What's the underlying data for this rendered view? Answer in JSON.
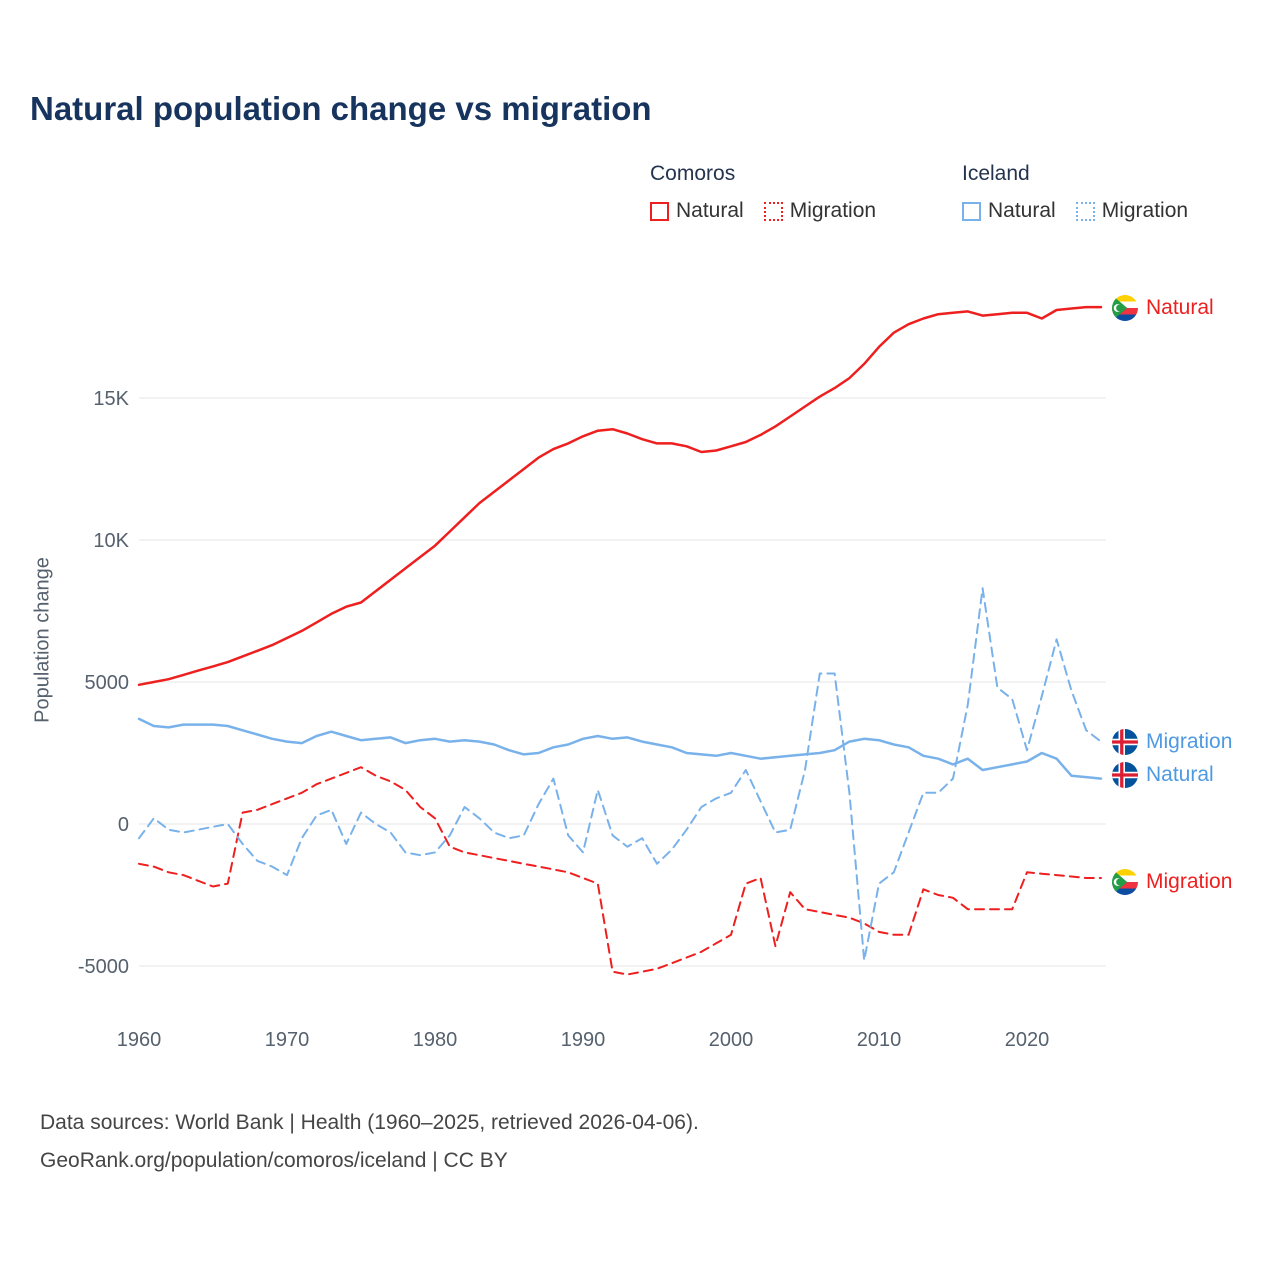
{
  "page": {
    "title": "Natural population change vs migration"
  },
  "colors": {
    "comoros": "#ee1f1f",
    "iceland_line": "#79b2ea",
    "iceland_text": "#4e9ae2",
    "title": "#17345e",
    "grid": "#e6e6e6",
    "axis_text": "#56616e"
  },
  "legend": {
    "groups": [
      {
        "country": "Comoros",
        "items": [
          {
            "label": "Natural",
            "style": "solid",
            "color": "#ee1f1f"
          },
          {
            "label": "Migration",
            "style": "dotted",
            "color": "#ee1f1f"
          }
        ]
      },
      {
        "country": "Iceland",
        "items": [
          {
            "label": "Natural",
            "style": "solid",
            "color": "#79b2ea"
          },
          {
            "label": "Migration",
            "style": "dotted",
            "color": "#79b2ea"
          }
        ]
      }
    ]
  },
  "series_labels": [
    {
      "label": "Natural",
      "country": "Comoros",
      "color": "#ee1f1f"
    },
    {
      "label": "Migration",
      "country": "Iceland",
      "color": "#4e9ae2"
    },
    {
      "label": "Natural",
      "country": "Iceland",
      "color": "#4e9ae2"
    },
    {
      "label": "Migration",
      "country": "Comoros",
      "color": "#ee1f1f"
    }
  ],
  "footer": {
    "line1": "Data sources: World Bank | Health (1960–2025, retrieved 2026-04-06).",
    "line2": "GeoRank.org/population/comoros/iceland | CC BY"
  },
  "chart_data": {
    "type": "line",
    "title": "Natural population change vs migration",
    "xlabel": "",
    "ylabel": "Population change",
    "grid": true,
    "legend_position": "top-right",
    "ylim": [
      -6500,
      19000
    ],
    "xlim": [
      1960,
      2025
    ],
    "yticks": [
      {
        "value": 15000,
        "label": "15K"
      },
      {
        "value": 10000,
        "label": "10K"
      },
      {
        "value": 5000,
        "label": "5000"
      },
      {
        "value": 0,
        "label": "0"
      },
      {
        "value": -5000,
        "label": "-5000"
      }
    ],
    "xticks": [
      1960,
      1970,
      1980,
      1990,
      2000,
      2010,
      2020
    ],
    "x": [
      1960,
      1961,
      1962,
      1963,
      1964,
      1965,
      1966,
      1967,
      1968,
      1969,
      1970,
      1971,
      1972,
      1973,
      1974,
      1975,
      1976,
      1977,
      1978,
      1979,
      1980,
      1981,
      1982,
      1983,
      1984,
      1985,
      1986,
      1987,
      1988,
      1989,
      1990,
      1991,
      1992,
      1993,
      1994,
      1995,
      1996,
      1997,
      1998,
      1999,
      2000,
      2001,
      2002,
      2003,
      2004,
      2005,
      2006,
      2007,
      2008,
      2009,
      2010,
      2011,
      2012,
      2013,
      2014,
      2015,
      2016,
      2017,
      2018,
      2019,
      2020,
      2021,
      2022,
      2023,
      2024,
      2025
    ],
    "series": [
      {
        "name": "Comoros Natural",
        "country": "Comoros",
        "color": "#ee1f1f",
        "dash": "solid",
        "values": [
          4900,
          5000,
          5100,
          5250,
          5400,
          5550,
          5700,
          5900,
          6100,
          6300,
          6550,
          6800,
          7100,
          7400,
          7650,
          7800,
          8200,
          8600,
          9000,
          9400,
          9800,
          10300,
          10800,
          11300,
          11700,
          12100,
          12500,
          12900,
          13200,
          13400,
          13650,
          13850,
          13900,
          13750,
          13550,
          13400,
          13400,
          13300,
          13100,
          13150,
          13300,
          13450,
          13700,
          14000,
          14350,
          14700,
          15050,
          15350,
          15700,
          16200,
          16800,
          17300,
          17600,
          17800,
          17950,
          18000,
          18050,
          17900,
          17950,
          18000,
          18000,
          17800,
          18100,
          18150,
          18200,
          18200
        ]
      },
      {
        "name": "Comoros Migration",
        "country": "Comoros",
        "color": "#ee1f1f",
        "dash": "dashed",
        "values": [
          -1400,
          -1500,
          -1700,
          -1800,
          -2000,
          -2200,
          -2100,
          400,
          500,
          700,
          900,
          1100,
          1400,
          1600,
          1800,
          2000,
          1700,
          1500,
          1200,
          600,
          200,
          -800,
          -1000,
          -1100,
          -1200,
          -1300,
          -1400,
          -1500,
          -1600,
          -1700,
          -1900,
          -2100,
          -5200,
          -5300,
          -5200,
          -5100,
          -4900,
          -4700,
          -4500,
          -4200,
          -3900,
          -2100,
          -1900,
          -4300,
          -2400,
          -3000,
          -3100,
          -3200,
          -3300,
          -3500,
          -3800,
          -3900,
          -3900,
          -2300,
          -2500,
          -2600,
          -3000,
          -3000,
          -3000,
          -3000,
          -1700,
          -1750,
          -1800,
          -1850,
          -1900,
          -1900
        ]
      },
      {
        "name": "Iceland Natural",
        "country": "Iceland",
        "color": "#79b2ea",
        "dash": "solid",
        "values": [
          3700,
          3450,
          3400,
          3500,
          3500,
          3500,
          3450,
          3300,
          3150,
          3000,
          2900,
          2850,
          3100,
          3250,
          3100,
          2950,
          3000,
          3050,
          2850,
          2950,
          3000,
          2900,
          2950,
          2900,
          2800,
          2600,
          2450,
          2500,
          2700,
          2800,
          3000,
          3100,
          3000,
          3050,
          2900,
          2800,
          2700,
          2500,
          2450,
          2400,
          2500,
          2400,
          2300,
          2350,
          2400,
          2450,
          2500,
          2600,
          2900,
          3000,
          2950,
          2800,
          2700,
          2400,
          2300,
          2100,
          2300,
          1900,
          2000,
          2100,
          2200,
          2500,
          2300,
          1700,
          1650,
          1600
        ]
      },
      {
        "name": "Iceland Migration",
        "country": "Iceland",
        "color": "#79b2ea",
        "dash": "dashed",
        "values": [
          -500,
          200,
          -200,
          -300,
          -200,
          -100,
          0,
          -700,
          -1300,
          -1500,
          -1800,
          -500,
          300,
          500,
          -700,
          400,
          0,
          -300,
          -1000,
          -1100,
          -1000,
          -400,
          600,
          200,
          -300,
          -500,
          -400,
          700,
          1600,
          -400,
          -1000,
          1200,
          -400,
          -800,
          -500,
          -1400,
          -900,
          -200,
          600,
          900,
          1100,
          1900,
          800,
          -300,
          -200,
          1900,
          5300,
          5300,
          1100,
          -4800,
          -2100,
          -1700,
          -300,
          1100,
          1100,
          1600,
          4200,
          8300,
          4800,
          4400,
          2600,
          4500,
          6500,
          4700,
          3300,
          2900
        ]
      }
    ]
  }
}
